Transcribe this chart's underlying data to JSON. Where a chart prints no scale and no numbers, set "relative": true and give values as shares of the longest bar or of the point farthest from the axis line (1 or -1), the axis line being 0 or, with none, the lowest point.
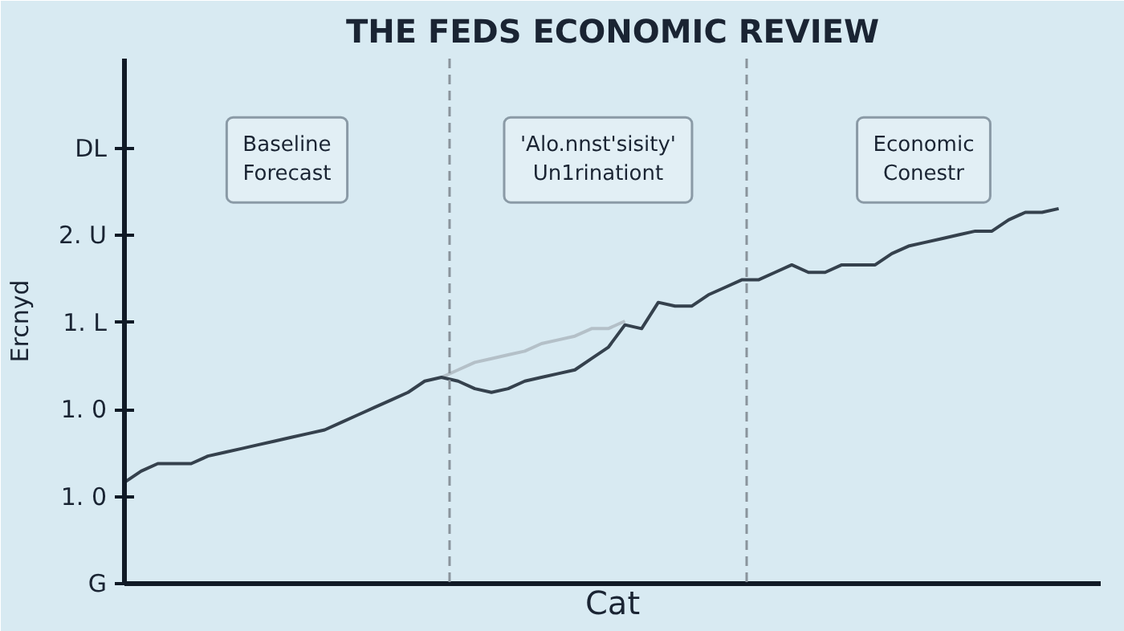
{
  "chart_data": {
    "type": "line",
    "title": "THE FEDS ECONOMIC REVIEW",
    "xlabel": "Cat",
    "ylabel": "Ercnyd",
    "relative": true,
    "categories": [
      null,
      null,
      null,
      null,
      null,
      null,
      null,
      null,
      null,
      null,
      null,
      null,
      null,
      null,
      null,
      null,
      null,
      null,
      null,
      null,
      null,
      null,
      null,
      null,
      null,
      null,
      null,
      null,
      null,
      null,
      null,
      null,
      null,
      null,
      null,
      null,
      null,
      null,
      null,
      null,
      null,
      null,
      null,
      null,
      null,
      null,
      null,
      null,
      null,
      null,
      null,
      null,
      null,
      null,
      null,
      null,
      null
    ],
    "series": [
      {
        "color": "#b4c0c8",
        "values": [
          null,
          null,
          null,
          null,
          null,
          null,
          null,
          null,
          null,
          null,
          null,
          null,
          null,
          null,
          null,
          null,
          null,
          null,
          null,
          0.55,
          0.57,
          0.59,
          0.6,
          0.61,
          0.62,
          0.64,
          0.65,
          0.66,
          0.68,
          0.68,
          0.7,
          null,
          null,
          null,
          null,
          null,
          null,
          null,
          null,
          null,
          null,
          null,
          null,
          null,
          null,
          null,
          null,
          null,
          null,
          null,
          null,
          null,
          null,
          null,
          null,
          null,
          null
        ]
      },
      {
        "color": "#35414d",
        "values": [
          0.27,
          0.3,
          0.32,
          0.32,
          0.32,
          0.34,
          0.35,
          0.36,
          0.37,
          0.38,
          0.39,
          0.4,
          0.41,
          0.43,
          0.45,
          0.47,
          0.49,
          0.51,
          0.54,
          0.55,
          0.54,
          0.52,
          0.51,
          0.52,
          0.54,
          0.55,
          0.56,
          0.57,
          0.6,
          0.63,
          0.69,
          0.68,
          0.75,
          0.74,
          0.74,
          0.77,
          0.79,
          0.81,
          0.81,
          0.83,
          0.85,
          0.83,
          0.83,
          0.85,
          0.85,
          0.85,
          0.88,
          0.9,
          0.91,
          0.92,
          0.93,
          0.94,
          0.94,
          0.97,
          0.99,
          0.99,
          1
        ]
      }
    ],
    "tick_labels": false,
    "grid": false,
    "marker": "none",
    "line_style": "solid",
    "annotations": [
      "Baseline\nForecast",
      "'Alo.nnst'sisity'\nUn1rinationt",
      "Economic\nConestr",
      "G",
      "1. 0",
      "1. 0",
      "1. L",
      "2. U",
      "DL"
    ]
  }
}
